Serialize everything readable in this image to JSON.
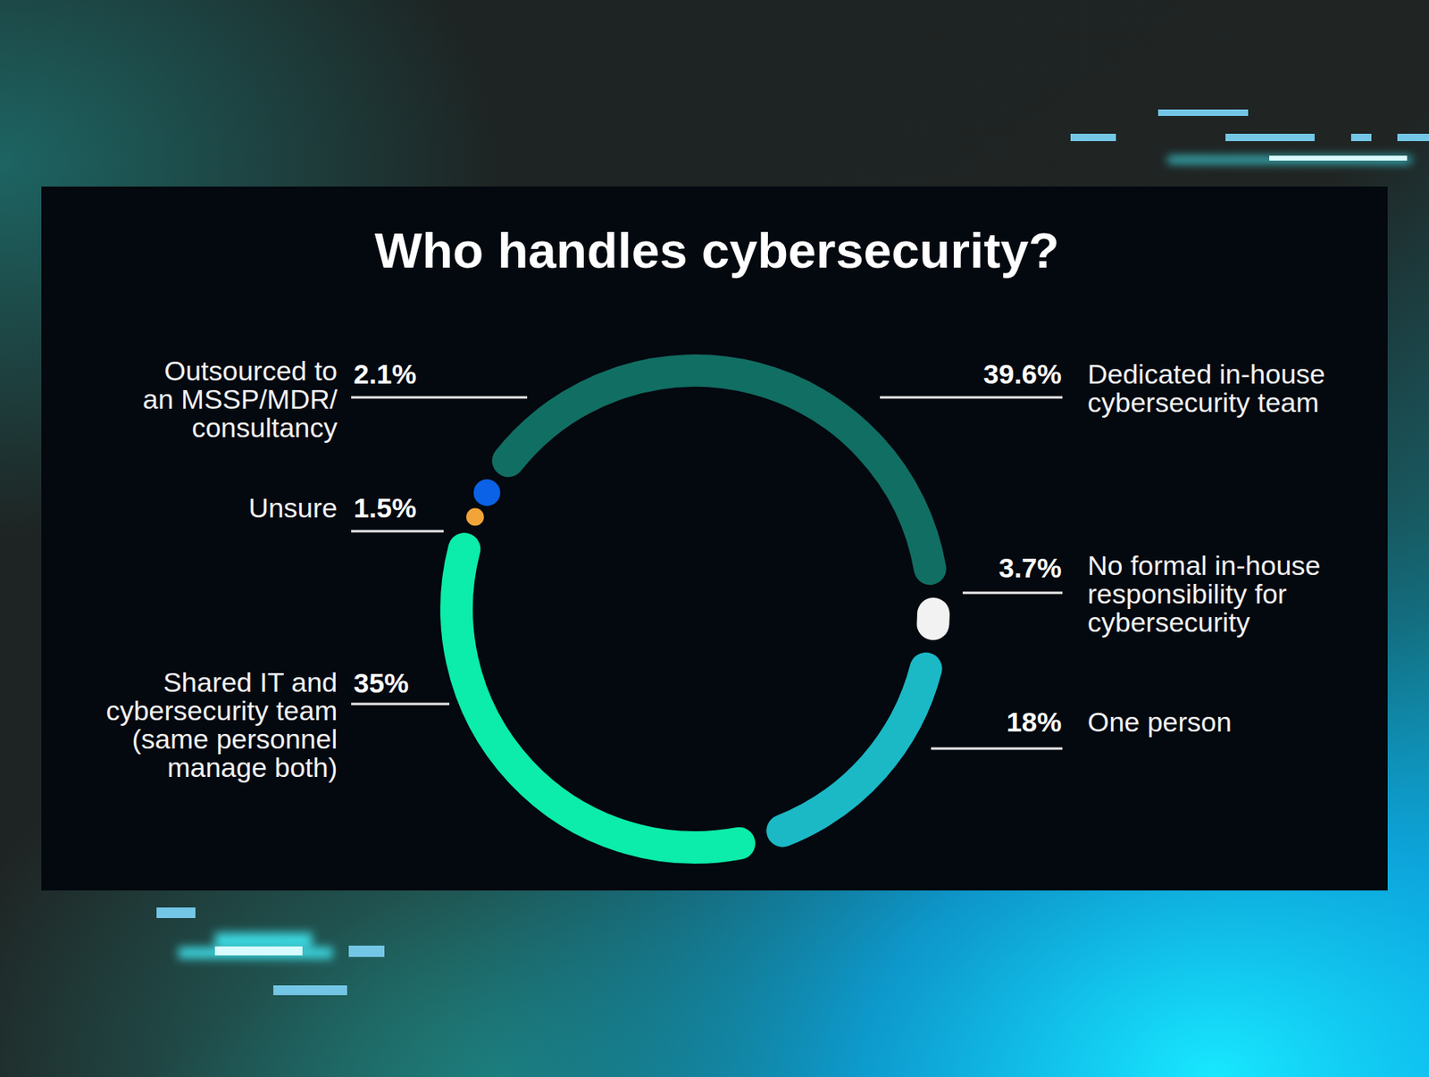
{
  "chart_data": {
    "type": "donut",
    "title": "Who handles cybersecurity?",
    "categories": [
      "Dedicated in-house\ncybersecurity team",
      "No formal in-house\nresponsibility for\ncybersecurity",
      "One person",
      "Shared IT and\ncybersecurity team\n(same personnel\nmanage both)",
      "Unsure",
      "Outsourced to\nan MSSP/MDR/\nconsultancy"
    ],
    "values": [
      39.6,
      3.7,
      18,
      35,
      1.5,
      2.1
    ],
    "value_labels": [
      "39.6%",
      "3.7%",
      "18%",
      "35%",
      "1.5%",
      "2.1%"
    ],
    "colors": [
      "#116e62",
      "#f2f2f2",
      "#1bb9c6",
      "#0cecaa",
      "#f2a43a",
      "#0b62e6"
    ],
    "data_labels": true
  }
}
